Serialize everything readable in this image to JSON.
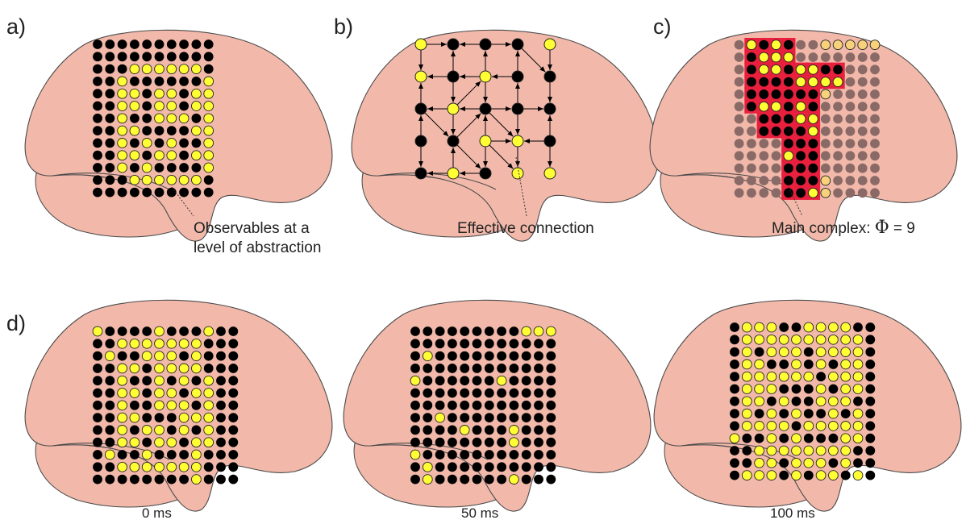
{
  "panel_letters": [
    "a)",
    "b)",
    "c)",
    "d)"
  ],
  "colors": {
    "brain_fill": "#f2b9ab",
    "brain_outline": "#4a4a4a",
    "on_node": "#ffff33",
    "off_node": "#000000",
    "faded_on_node": "#f7d27a",
    "faded_off_node": "#8a6a66",
    "complex_fill": "#e8203e"
  },
  "panel_a": {
    "caption_line1": "Observables at a",
    "caption_line2": "level of abstraction",
    "grid": [
      "00000000000000",
      "00000000000000",
      "00011111100000",
      "00100000010000",
      "00110110110000",
      "00110110110000",
      "00100111010000",
      "00110000110000",
      "00101010010000",
      "00110110110000",
      "00101000010000",
      "00011111100000",
      "00000000000000"
    ]
  },
  "panel_b": {
    "caption": "Effective connection",
    "nodes": [
      [
        1,
        0,
        0,
        0,
        1
      ],
      [
        1,
        0,
        1,
        0,
        0
      ],
      [
        0,
        1,
        0,
        0,
        0
      ],
      [
        0,
        0,
        1,
        1,
        0
      ],
      [
        0,
        1,
        0,
        1,
        1
      ]
    ],
    "edges": [
      [
        [
          0,
          0
        ],
        [
          0,
          1
        ]
      ],
      [
        [
          0,
          2
        ],
        [
          0,
          1
        ]
      ],
      [
        [
          0,
          2
        ],
        [
          0,
          3
        ]
      ],
      [
        [
          0,
          0
        ],
        [
          1,
          0
        ]
      ],
      [
        [
          1,
          1
        ],
        [
          1,
          0
        ]
      ],
      [
        [
          1,
          2
        ],
        [
          1,
          1
        ]
      ],
      [
        [
          1,
          3
        ],
        [
          1,
          2
        ]
      ],
      [
        [
          1,
          1
        ],
        [
          0,
          1
        ]
      ],
      [
        [
          1,
          2
        ],
        [
          0,
          2
        ]
      ],
      [
        [
          1,
          3
        ],
        [
          0,
          3
        ]
      ],
      [
        [
          0,
          4
        ],
        [
          1,
          4
        ]
      ],
      [
        [
          1,
          4
        ],
        [
          2,
          4
        ]
      ],
      [
        [
          2,
          0
        ],
        [
          1,
          0
        ]
      ],
      [
        [
          1,
          1
        ],
        [
          2,
          1
        ]
      ],
      [
        [
          2,
          1
        ],
        [
          1,
          2
        ]
      ],
      [
        [
          1,
          2
        ],
        [
          2,
          2
        ]
      ],
      [
        [
          2,
          3
        ],
        [
          1,
          3
        ]
      ],
      [
        [
          2,
          3
        ],
        [
          2,
          4
        ]
      ],
      [
        [
          0,
          3
        ],
        [
          1,
          4
        ]
      ],
      [
        [
          2,
          1
        ],
        [
          2,
          0
        ]
      ],
      [
        [
          2,
          2
        ],
        [
          2,
          1
        ]
      ],
      [
        [
          2,
          2
        ],
        [
          2,
          3
        ]
      ],
      [
        [
          3,
          0
        ],
        [
          2,
          0
        ]
      ],
      [
        [
          2,
          1
        ],
        [
          3,
          1
        ]
      ],
      [
        [
          3,
          2
        ],
        [
          2,
          2
        ]
      ],
      [
        [
          2,
          3
        ],
        [
          3,
          3
        ]
      ],
      [
        [
          2,
          2
        ],
        [
          3,
          3
        ]
      ],
      [
        [
          3,
          1
        ],
        [
          2,
          2
        ]
      ],
      [
        [
          3,
          4
        ],
        [
          2,
          4
        ]
      ],
      [
        [
          2,
          0
        ],
        [
          3,
          1
        ]
      ],
      [
        [
          3,
          2
        ],
        [
          3,
          3
        ]
      ],
      [
        [
          3,
          4
        ],
        [
          3,
          3
        ]
      ],
      [
        [
          3,
          0
        ],
        [
          4,
          0
        ]
      ],
      [
        [
          4,
          1
        ],
        [
          3,
          1
        ]
      ],
      [
        [
          3,
          2
        ],
        [
          4,
          2
        ]
      ],
      [
        [
          3,
          3
        ],
        [
          4,
          3
        ]
      ],
      [
        [
          4,
          1
        ],
        [
          4,
          0
        ]
      ],
      [
        [
          4,
          2
        ],
        [
          4,
          1
        ]
      ],
      [
        [
          3,
          4
        ],
        [
          4,
          4
        ]
      ],
      [
        [
          3,
          2
        ],
        [
          4,
          3
        ]
      ],
      [
        [
          3,
          1
        ],
        [
          4,
          2
        ]
      ]
    ]
  },
  "panel_c": {
    "caption": "Main complex: ",
    "phi_symbol": "Φ",
    "phi_value": "= 9",
    "grid": [
      "01010001111111",
      "00111000000000",
      "00110110000000",
      "00000111100000",
      "00000001000000",
      "00110100000000",
      "00000110000000",
      "00000010000000",
      "00000000000000",
      "00001000000000",
      "00000000000000",
      "00000001000000",
      "00000011000000"
    ],
    "complex_cells": [
      [
        0,
        1
      ],
      [
        0,
        2
      ],
      [
        0,
        3
      ],
      [
        0,
        4
      ],
      [
        1,
        1
      ],
      [
        1,
        2
      ],
      [
        1,
        3
      ],
      [
        1,
        4
      ],
      [
        2,
        1
      ],
      [
        2,
        2
      ],
      [
        2,
        3
      ],
      [
        2,
        4
      ],
      [
        2,
        5
      ],
      [
        2,
        6
      ],
      [
        2,
        7
      ],
      [
        2,
        8
      ],
      [
        3,
        1
      ],
      [
        3,
        2
      ],
      [
        3,
        3
      ],
      [
        3,
        4
      ],
      [
        3,
        5
      ],
      [
        3,
        6
      ],
      [
        3,
        7
      ],
      [
        3,
        8
      ],
      [
        4,
        1
      ],
      [
        4,
        2
      ],
      [
        4,
        3
      ],
      [
        4,
        4
      ],
      [
        4,
        5
      ],
      [
        4,
        6
      ],
      [
        5,
        1
      ],
      [
        5,
        2
      ],
      [
        5,
        3
      ],
      [
        5,
        4
      ],
      [
        5,
        5
      ],
      [
        5,
        6
      ],
      [
        6,
        2
      ],
      [
        6,
        3
      ],
      [
        6,
        4
      ],
      [
        6,
        5
      ],
      [
        6,
        6
      ],
      [
        7,
        2
      ],
      [
        7,
        3
      ],
      [
        7,
        4
      ],
      [
        7,
        5
      ],
      [
        7,
        6
      ],
      [
        8,
        4
      ],
      [
        8,
        5
      ],
      [
        8,
        6
      ],
      [
        9,
        4
      ],
      [
        9,
        5
      ],
      [
        9,
        6
      ],
      [
        10,
        4
      ],
      [
        10,
        5
      ],
      [
        10,
        6
      ],
      [
        11,
        4
      ],
      [
        11,
        5
      ],
      [
        11,
        6
      ],
      [
        12,
        4
      ],
      [
        12,
        5
      ],
      [
        12,
        6
      ]
    ]
  },
  "panel_d": {
    "frames": [
      {
        "label": "0 ms",
        "grid": [
          "10000100010000",
          "00111111100000",
          "01001110100000",
          "00110111100000",
          "00100101010000",
          "00110110110000",
          "00100111010000",
          "00110001110000",
          "00101101010000",
          "00110110110000",
          "01001000100000",
          "00111111100000",
          "00000000100000"
        ]
      },
      {
        "label": "50 ms",
        "grid": [
          "00000000011100",
          "00000000000000",
          "01000000000000",
          "00000000000000",
          "10000001000000",
          "00000000000000",
          "00000000000000",
          "00100000000000",
          "00001000100000",
          "00000000100000",
          "10000000000000",
          "01000000000000",
          "01000000100000"
        ]
      },
      {
        "label": "100 ms",
        "grid": [
          "01110011110000",
          "01111111111000",
          "01011101111000",
          "01100101011000",
          "01111110111000",
          "01110001011000",
          "01101001110000",
          "01010100101000",
          "01111011111000",
          "10010100011000",
          "00111111110000",
          "00110111010000",
          "01110101101000"
        ]
      }
    ]
  }
}
